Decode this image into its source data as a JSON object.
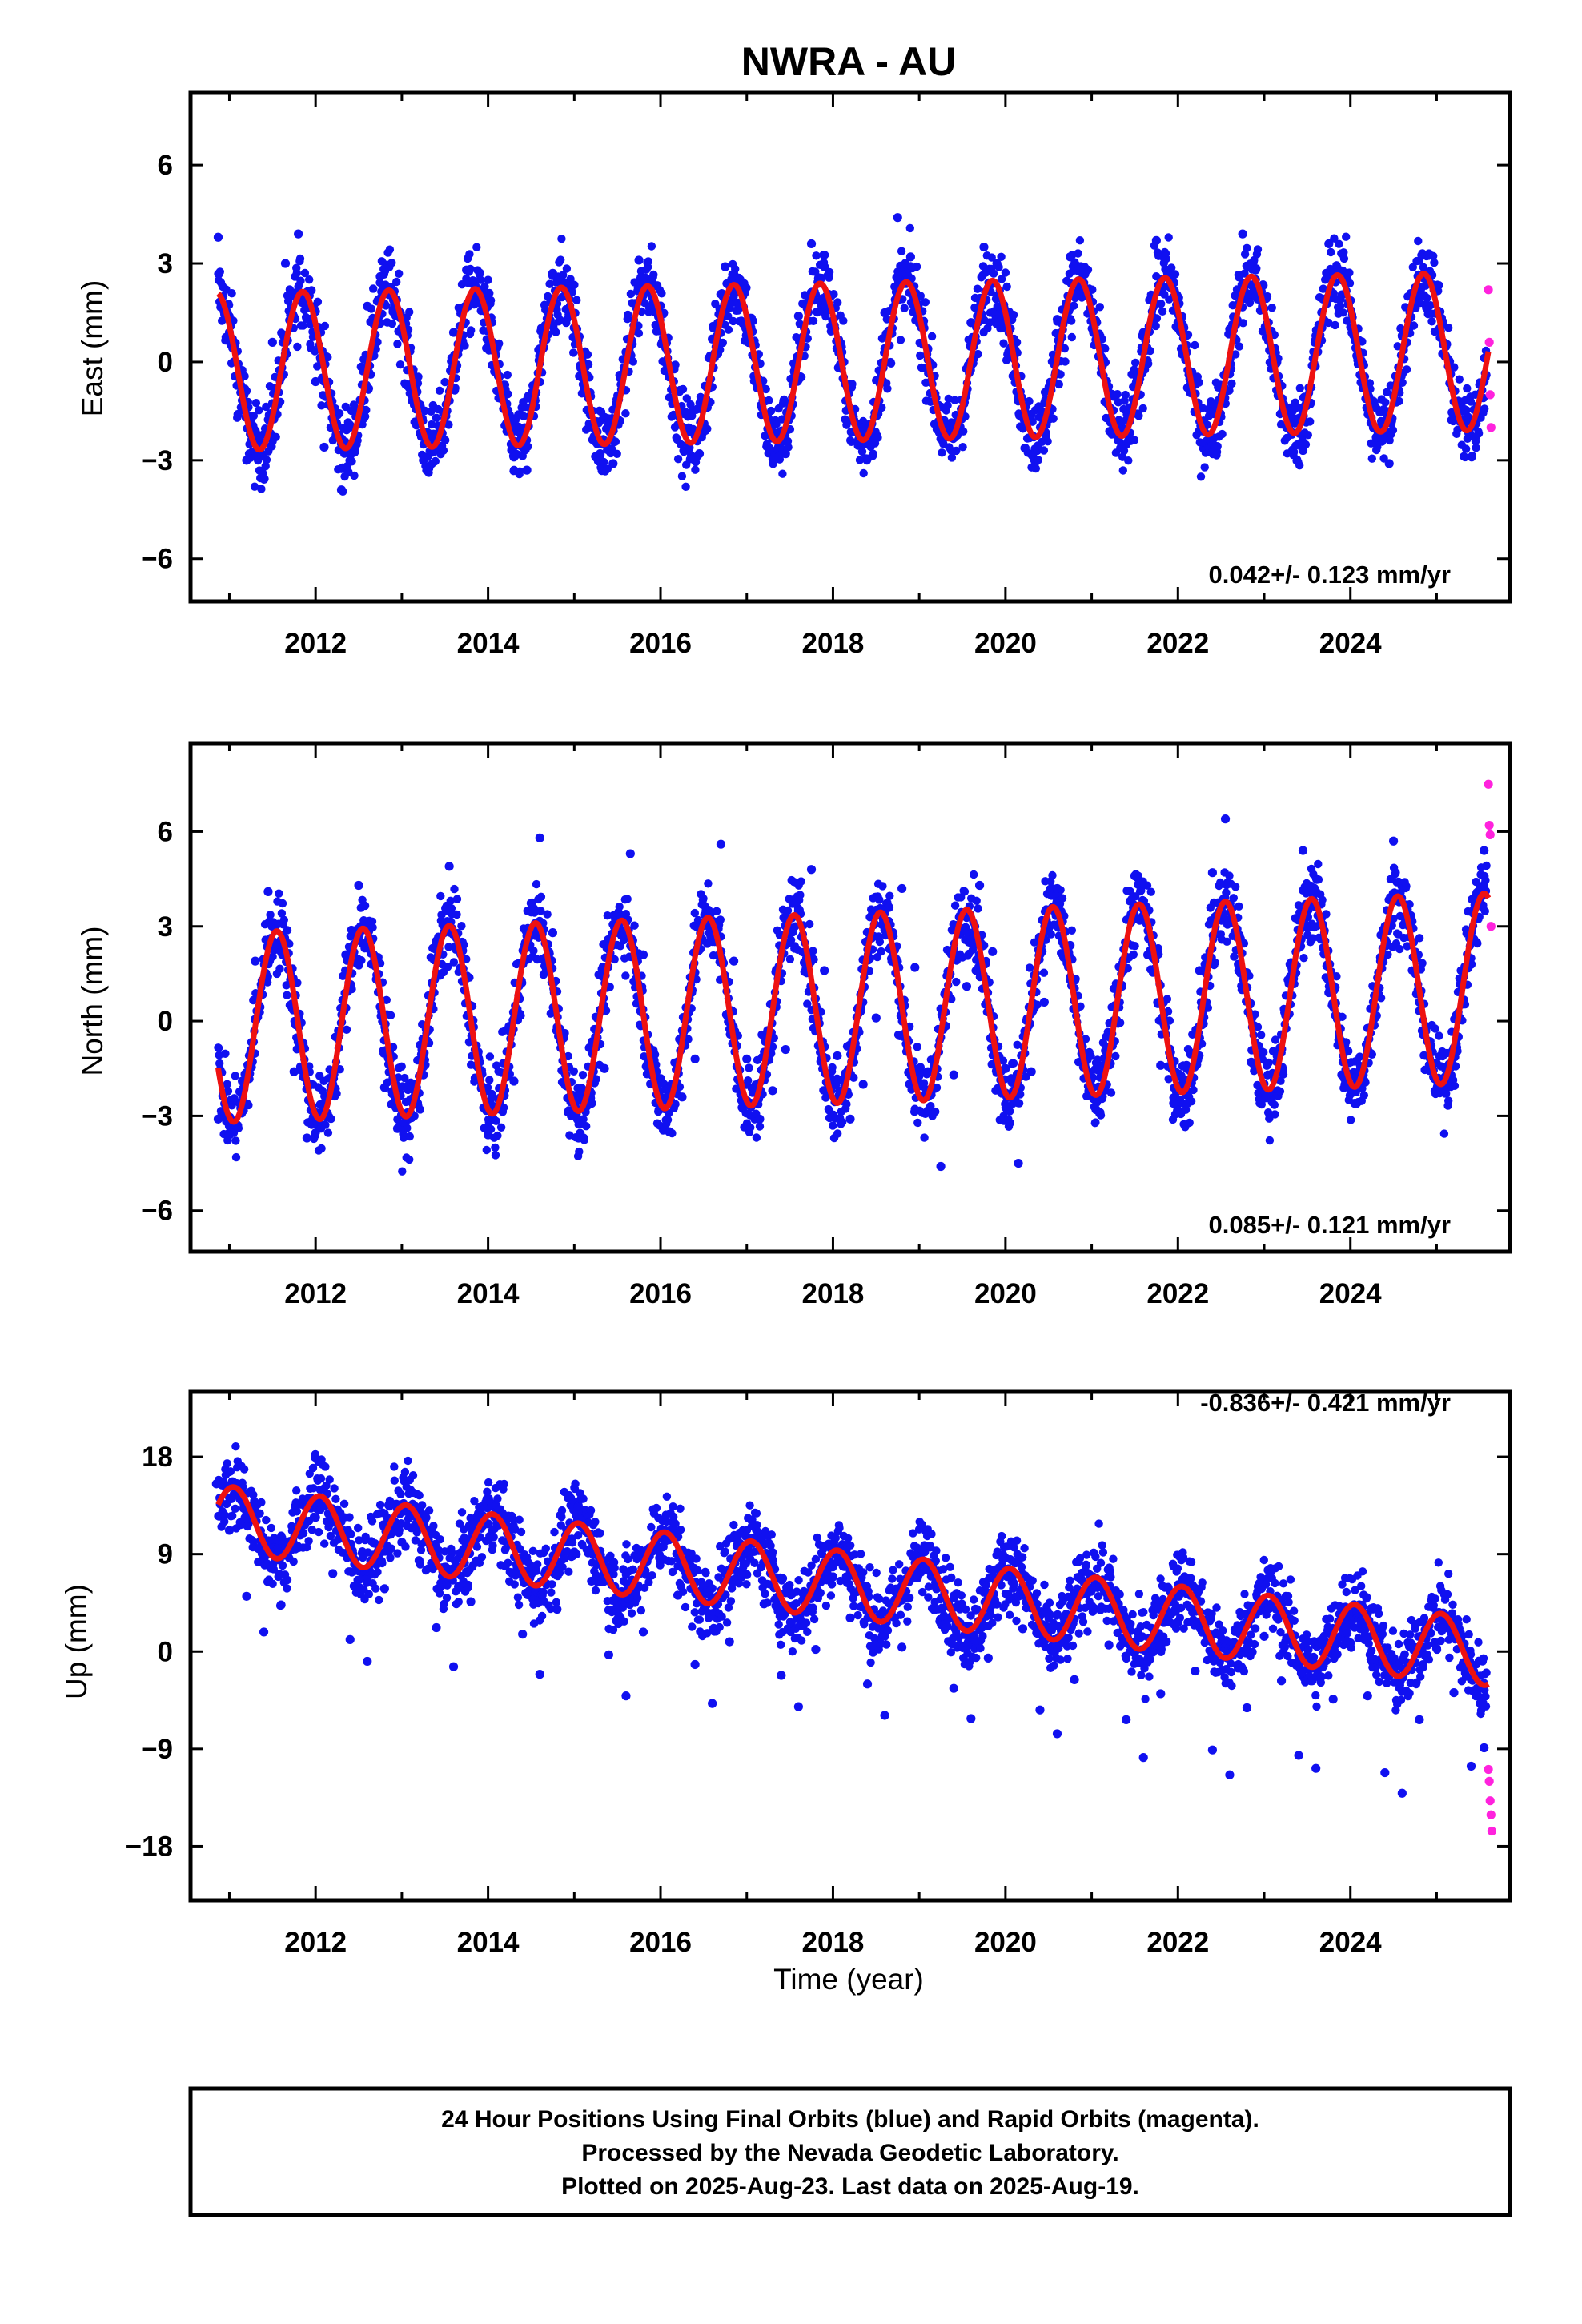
{
  "title": "NWRA - AU",
  "colors": {
    "final_orbits": "#1010f0",
    "rapid_orbits": "#ff22dd",
    "model_fit": "#ee1111",
    "frame": "#000000"
  },
  "chart_data": [
    {
      "type": "scatter",
      "panel": "east",
      "ylabel": "East (mm)",
      "xlabel": "",
      "rate_label": "0.042+/- 0.123 mm/yr",
      "xlim": [
        2010.55,
        2025.85
      ],
      "ylim": [
        -7.3,
        8.2
      ],
      "yticks": [
        -6,
        -3,
        0,
        3,
        6
      ],
      "xticks": [
        2012,
        2014,
        2016,
        2018,
        2020,
        2022,
        2024
      ],
      "xtick_labels": [
        "2012",
        "2014",
        "2016",
        "2018",
        "2020",
        "2022",
        "2024"
      ],
      "series": [
        {
          "role": "final",
          "x": [
            2010.87,
            2011.0,
            2011.1,
            2011.2,
            2011.35,
            2011.5,
            2011.65,
            2011.8,
            2011.9,
            2012.0,
            2012.1,
            2012.3,
            2012.45,
            2012.6,
            2012.75,
            2012.9,
            2013.05,
            2013.25,
            2013.45,
            2013.6,
            2013.75,
            2013.9,
            2014.1,
            2014.3,
            2014.45,
            2014.6,
            2014.75,
            2014.9,
            2015.1,
            2015.3,
            2015.45,
            2015.6,
            2015.75,
            2015.9,
            2016.1,
            2016.3,
            2016.45,
            2016.6,
            2016.75,
            2016.9,
            2017.1,
            2017.3,
            2017.45,
            2017.6,
            2017.75,
            2017.9,
            2018.1,
            2018.3,
            2018.45,
            2018.6,
            2018.75,
            2018.9,
            2019.1,
            2019.3,
            2019.45,
            2019.6,
            2019.75,
            2019.9,
            2020.1,
            2020.3,
            2020.45,
            2020.6,
            2020.75,
            2020.9,
            2021.1,
            2021.3,
            2021.45,
            2021.6,
            2021.75,
            2021.9,
            2022.1,
            2022.3,
            2022.45,
            2022.6,
            2022.75,
            2022.9,
            2023.1,
            2023.3,
            2023.45,
            2023.6,
            2023.75,
            2023.9,
            2024.1,
            2024.3,
            2024.45,
            2024.6,
            2024.75,
            2024.9,
            2025.1,
            2025.3,
            2025.45,
            2025.55
          ],
          "y": [
            3.8,
            0.9,
            -1.6,
            -3.0,
            -2.4,
            0.6,
            3.0,
            3.9,
            2.1,
            -0.6,
            -2.6,
            -3.9,
            -1.4,
            1.7,
            2.6,
            1.6,
            -0.7,
            -3.0,
            -2.1,
            0.9,
            2.8,
            1.8,
            -0.3,
            -2.9,
            -3.3,
            0.4,
            2.7,
            2.2,
            -0.2,
            -2.8,
            -3.1,
            0.3,
            3.1,
            2.0,
            -0.1,
            -2.1,
            -2.8,
            0.7,
            2.9,
            2.4,
            0.1,
            -1.9,
            -2.8,
            1.4,
            3.6,
            2.9,
            -0.2,
            -2.4,
            -2.1,
            1.5,
            4.4,
            3.2,
            0.4,
            -2.0,
            -1.9,
            1.2,
            3.5,
            3.0,
            0.1,
            -1.6,
            -1.7,
            1.3,
            3.2,
            2.7,
            0.2,
            -2.1,
            -2.4,
            0.9,
            3.7,
            2.6,
            0.3,
            -1.8,
            -2.6,
            1.0,
            3.9,
            2.8,
            0.4,
            -1.8,
            -2.7,
            0.8,
            3.6,
            2.5,
            0.3,
            -2.3,
            -3.1,
            0.8,
            2.2,
            2.4,
            0.2,
            -1.5,
            -2.3,
            -0.6
          ]
        },
        {
          "role": "rapid",
          "x": [
            2025.6,
            2025.61,
            2025.62,
            2025.63
          ],
          "y": [
            2.2,
            0.6,
            -1.0,
            -2.0
          ]
        },
        {
          "role": "model",
          "amplitude": 2.4,
          "phase_year": 2011.85,
          "offset": 0.0,
          "trend_mm_per_yr": 0.042
        }
      ]
    },
    {
      "type": "scatter",
      "panel": "north",
      "ylabel": "North (mm)",
      "xlabel": "",
      "rate_label": "0.085+/- 0.121 mm/yr",
      "xlim": [
        2010.55,
        2025.85
      ],
      "ylim": [
        -7.3,
        8.8
      ],
      "yticks": [
        -6,
        -3,
        0,
        3,
        6
      ],
      "xticks": [
        2012,
        2014,
        2016,
        2018,
        2020,
        2022,
        2024
      ],
      "xtick_labels": [
        "2012",
        "2014",
        "2016",
        "2018",
        "2020",
        "2022",
        "2024"
      ],
      "series": [
        {
          "role": "final",
          "x": [
            2010.87,
            2011.0,
            2011.15,
            2011.3,
            2011.45,
            2011.6,
            2011.75,
            2011.9,
            2012.05,
            2012.2,
            2012.35,
            2012.5,
            2012.65,
            2012.8,
            2012.95,
            2013.1,
            2013.25,
            2013.4,
            2013.55,
            2013.7,
            2013.85,
            2014.0,
            2014.15,
            2014.3,
            2014.45,
            2014.6,
            2014.75,
            2014.9,
            2015.05,
            2015.2,
            2015.35,
            2015.5,
            2015.65,
            2015.8,
            2015.95,
            2016.1,
            2016.25,
            2016.4,
            2016.55,
            2016.7,
            2016.85,
            2017.0,
            2017.15,
            2017.3,
            2017.45,
            2017.6,
            2017.75,
            2017.9,
            2018.05,
            2018.2,
            2018.35,
            2018.5,
            2018.65,
            2018.8,
            2018.95,
            2019.1,
            2019.25,
            2019.4,
            2019.55,
            2019.7,
            2019.85,
            2020.0,
            2020.15,
            2020.3,
            2020.45,
            2020.6,
            2020.75,
            2020.9,
            2021.05,
            2021.2,
            2021.35,
            2021.5,
            2021.65,
            2021.8,
            2021.95,
            2022.1,
            2022.25,
            2022.4,
            2022.55,
            2022.7,
            2022.85,
            2023.0,
            2023.15,
            2023.3,
            2023.45,
            2023.6,
            2023.75,
            2023.9,
            2024.05,
            2024.2,
            2024.35,
            2024.5,
            2024.65,
            2024.8,
            2024.95,
            2025.1,
            2025.25,
            2025.4,
            2025.55
          ],
          "y": [
            -3.1,
            -3.6,
            -1.9,
            1.9,
            4.1,
            2.2,
            -1.6,
            -3.7,
            -2.9,
            -2.0,
            2.1,
            4.3,
            1.8,
            -2.1,
            -3.4,
            -2.9,
            -1.7,
            2.4,
            4.9,
            2.5,
            -1.8,
            -3.6,
            -2.8,
            -1.9,
            2.7,
            5.8,
            2.8,
            -1.7,
            -3.7,
            -2.6,
            -1.5,
            3.1,
            5.3,
            2.1,
            -1.6,
            -3.5,
            -2.4,
            -1.2,
            3.2,
            5.6,
            1.9,
            -1.2,
            -3.1,
            -2.2,
            -0.9,
            3.5,
            4.8,
            1.6,
            -1.1,
            -3.1,
            -2.0,
            0.1,
            3.6,
            4.2,
            1.7,
            -1.6,
            -4.6,
            -1.7,
            1.1,
            4.3,
            2.2,
            -1.5,
            -4.5,
            -1.6,
            0.6,
            4.2,
            2.4,
            -1.2,
            -2.8,
            -1.3,
            1.1,
            4.6,
            2.1,
            -1.4,
            -2.6,
            -1.4,
            1.6,
            4.7,
            6.4,
            1.8,
            -1.3,
            -2.2,
            -1.1,
            1.8,
            5.4,
            4.1,
            0.9,
            -1.7,
            -2.6,
            -0.9,
            1.9,
            5.7,
            3.3,
            0.6,
            -1.4,
            -2.2,
            -0.5,
            1.8,
            5.4
          ]
        },
        {
          "role": "rapid",
          "x": [
            2025.6,
            2025.61,
            2025.62,
            2025.63
          ],
          "y": [
            7.5,
            6.2,
            5.9,
            3.0
          ]
        },
        {
          "role": "model",
          "amplitude": 3.0,
          "phase_year": 2011.55,
          "offset": 0.4,
          "trend_mm_per_yr": 0.085
        }
      ]
    },
    {
      "type": "scatter",
      "panel": "up",
      "ylabel": "Up (mm)",
      "xlabel": "Time (year)",
      "rate_label": "-0.836+/- 0.421 mm/yr",
      "xlim": [
        2010.55,
        2025.85
      ],
      "ylim": [
        -23.0,
        24.0
      ],
      "yticks": [
        -18,
        -9,
        0,
        9,
        18
      ],
      "xticks": [
        2012,
        2014,
        2016,
        2018,
        2020,
        2022,
        2024
      ],
      "xtick_labels": [
        "2012",
        "2014",
        "2016",
        "2018",
        "2020",
        "2022",
        "2024"
      ],
      "series": [
        {
          "role": "final",
          "x": [
            2010.85,
            2011.0,
            2011.2,
            2011.4,
            2011.6,
            2011.8,
            2012.0,
            2012.2,
            2012.4,
            2012.6,
            2012.8,
            2013.0,
            2013.2,
            2013.4,
            2013.6,
            2013.8,
            2014.0,
            2014.2,
            2014.4,
            2014.6,
            2014.8,
            2015.0,
            2015.2,
            2015.4,
            2015.6,
            2015.8,
            2016.0,
            2016.2,
            2016.4,
            2016.6,
            2016.8,
            2017.0,
            2017.2,
            2017.4,
            2017.6,
            2017.8,
            2018.0,
            2018.2,
            2018.4,
            2018.6,
            2018.8,
            2019.0,
            2019.2,
            2019.4,
            2019.6,
            2019.8,
            2020.0,
            2020.2,
            2020.4,
            2020.6,
            2020.8,
            2021.0,
            2021.2,
            2021.4,
            2021.6,
            2021.8,
            2022.0,
            2022.2,
            2022.4,
            2022.6,
            2022.8,
            2023.0,
            2023.2,
            2023.4,
            2023.6,
            2023.8,
            2024.0,
            2024.2,
            2024.4,
            2024.6,
            2024.8,
            2025.0,
            2025.2,
            2025.4,
            2025.55
          ],
          "y": [
            15.5,
            11.2,
            5.1,
            1.8,
            4.3,
            9.6,
            12.4,
            7.2,
            1.1,
            -0.9,
            5.8,
            10.1,
            8.4,
            2.2,
            -1.4,
            4.6,
            11.8,
            7.9,
            1.6,
            -2.1,
            3.9,
            9.2,
            6.5,
            -0.3,
            -4.1,
            1.8,
            8.4,
            5.2,
            -1.2,
            -4.8,
            0.9,
            7.1,
            4.4,
            -2.2,
            -5.1,
            0.2,
            6.9,
            3.1,
            -3.0,
            -5.9,
            0.4,
            8.7,
            5.8,
            -3.4,
            -6.2,
            -0.6,
            7.3,
            2.1,
            -5.4,
            -7.6,
            -2.6,
            4.2,
            0.6,
            -6.3,
            -9.8,
            -3.9,
            2.7,
            -1.8,
            -9.1,
            -11.4,
            -5.2,
            1.4,
            -2.7,
            -9.6,
            -10.8,
            -4.4,
            0.8,
            -4.1,
            -11.2,
            -13.1,
            -6.3,
            0.3,
            -3.8,
            -10.6,
            -8.9
          ]
        },
        {
          "role": "rapid",
          "x": [
            2025.6,
            2025.61,
            2025.62,
            2025.63,
            2025.64
          ],
          "y": [
            -10.9,
            -12.0,
            -13.8,
            -15.1,
            -16.6
          ]
        },
        {
          "role": "model",
          "amplitude": 3.1,
          "phase_year": 2011.05,
          "offset": 6.3,
          "trend_mm_per_yr": -0.836
        }
      ]
    }
  ],
  "footer": {
    "line1": "24 Hour Positions Using Final Orbits (blue) and Rapid Orbits (magenta).",
    "line2": "Processed by the Nevada Geodetic Laboratory.",
    "line3": "Plotted on 2025-Aug-23. Last data on 2025-Aug-19."
  }
}
